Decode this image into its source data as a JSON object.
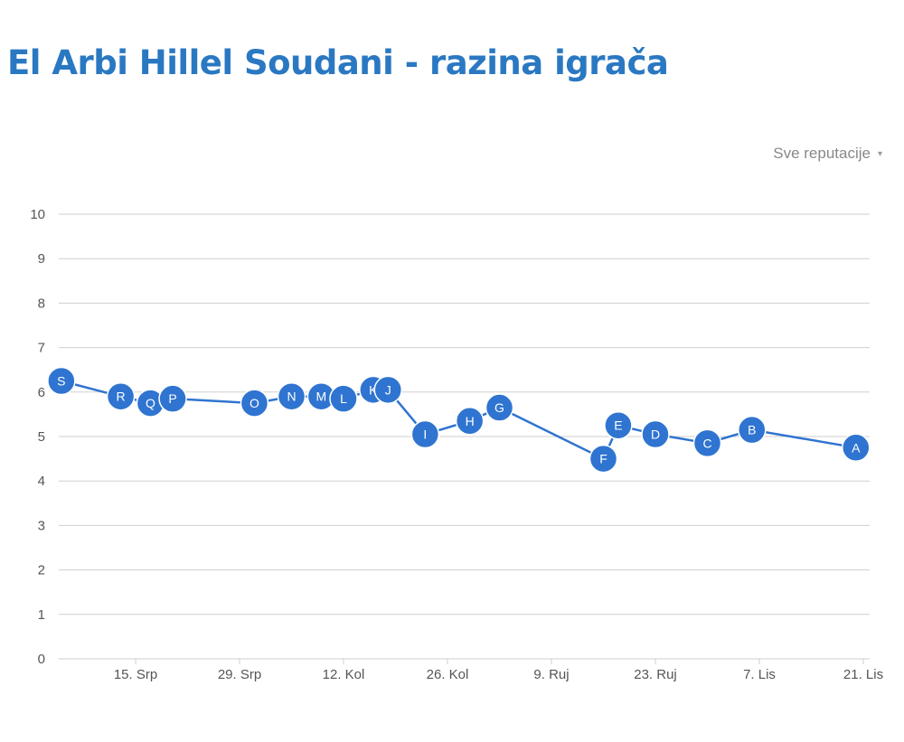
{
  "header": {
    "title": "El Arbi Hillel Soudani - razina igrača"
  },
  "controls": {
    "reputation_filter": "Sve reputacije",
    "caret": "▾"
  },
  "colors": {
    "title": "#2a78c2",
    "series": "#2f74d0",
    "grid": "#cfcfcf"
  },
  "chart_data": {
    "type": "line",
    "title": "",
    "xlabel": "",
    "ylabel": "",
    "ylim": [
      0,
      10
    ],
    "yticks": [
      0,
      1,
      2,
      3,
      4,
      5,
      6,
      7,
      8,
      9,
      10
    ],
    "xlim": [
      "2013-07-03",
      "2013-10-21"
    ],
    "xticks": [
      {
        "date": "2013-07-15",
        "label": "15. Srp"
      },
      {
        "date": "2013-07-29",
        "label": "29. Srp"
      },
      {
        "date": "2013-08-12",
        "label": "12. Kol"
      },
      {
        "date": "2013-08-26",
        "label": "26. Kol"
      },
      {
        "date": "2013-09-09",
        "label": "9. Ruj"
      },
      {
        "date": "2013-09-23",
        "label": "23. Ruj"
      },
      {
        "date": "2013-10-07",
        "label": "7. Lis"
      },
      {
        "date": "2013-10-21",
        "label": "21. Lis"
      }
    ],
    "grid": true,
    "series": [
      {
        "points": [
          {
            "label": "S",
            "x": "2013-07-05",
            "y": 6.25
          },
          {
            "label": "R",
            "x": "2013-07-13",
            "y": 5.9
          },
          {
            "label": "Q",
            "x": "2013-07-17",
            "y": 5.75
          },
          {
            "label": "P",
            "x": "2013-07-20",
            "y": 5.85
          },
          {
            "label": "O",
            "x": "2013-07-31",
            "y": 5.75
          },
          {
            "label": "N",
            "x": "2013-08-05",
            "y": 5.9
          },
          {
            "label": "M",
            "x": "2013-08-09",
            "y": 5.9
          },
          {
            "label": "L",
            "x": "2013-08-12",
            "y": 5.85
          },
          {
            "label": "K",
            "x": "2013-08-16",
            "y": 6.05
          },
          {
            "label": "J",
            "x": "2013-08-18",
            "y": 6.05
          },
          {
            "label": "I",
            "x": "2013-08-23",
            "y": 5.05
          },
          {
            "label": "H",
            "x": "2013-08-29",
            "y": 5.35
          },
          {
            "label": "G",
            "x": "2013-09-02",
            "y": 5.65
          },
          {
            "label": "F",
            "x": "2013-09-16",
            "y": 4.5
          },
          {
            "label": "E",
            "x": "2013-09-18",
            "y": 5.25
          },
          {
            "label": "D",
            "x": "2013-09-23",
            "y": 5.05
          },
          {
            "label": "C",
            "x": "2013-09-30",
            "y": 4.85
          },
          {
            "label": "B",
            "x": "2013-10-06",
            "y": 5.15
          },
          {
            "label": "A",
            "x": "2013-10-20",
            "y": 4.75
          }
        ]
      }
    ]
  }
}
